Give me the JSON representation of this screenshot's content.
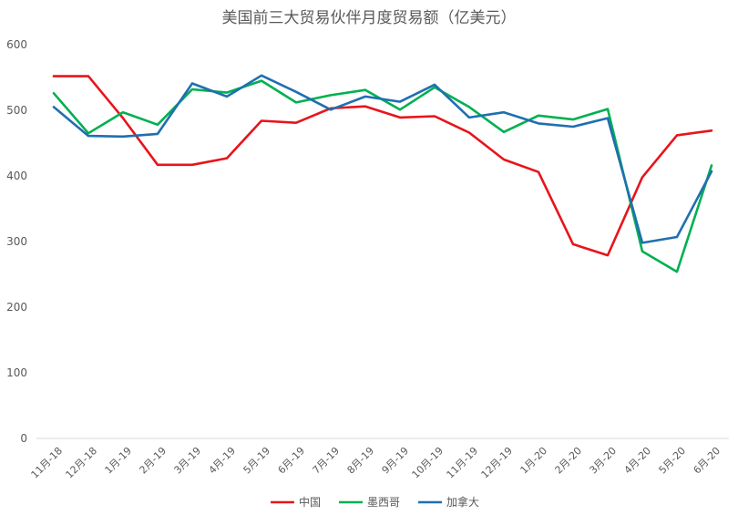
{
  "chart_data": {
    "type": "line",
    "title": "美国前三大贸易伙伴月度贸易额（亿美元）",
    "xlabel": "",
    "ylabel": "",
    "ylim": [
      0,
      600
    ],
    "yticks": [
      "0",
      "100",
      "200",
      "300",
      "400",
      "500",
      "600"
    ],
    "grid": false,
    "legend_position": "bottom",
    "categories": [
      "11月-18",
      "12月-18",
      "1月-19",
      "2月-19",
      "3月-19",
      "4月-19",
      "5月-19",
      "6月-19",
      "7月-19",
      "8月-19",
      "9月-19",
      "10月-19",
      "11月-19",
      "12月-19",
      "1月-20",
      "2月-20",
      "3月-20",
      "4月-20",
      "5月-20",
      "6月-20"
    ],
    "series": [
      {
        "name": "中国",
        "color": "#e8141b",
        "values": [
          552,
          552,
          488,
          417,
          417,
          427,
          484,
          481,
          503,
          506,
          489,
          491,
          466,
          425,
          406,
          296,
          279,
          398,
          462,
          469
        ]
      },
      {
        "name": "墨西哥",
        "color": "#00b050",
        "values": [
          526,
          465,
          497,
          478,
          532,
          527,
          545,
          512,
          523,
          531,
          501,
          535,
          505,
          467,
          492,
          486,
          502,
          285,
          254,
          416
        ]
      },
      {
        "name": "加拿大",
        "color": "#1f6fb0",
        "values": [
          505,
          461,
          460,
          464,
          541,
          521,
          553,
          528,
          501,
          521,
          513,
          539,
          489,
          497,
          480,
          475,
          488,
          298,
          307,
          407
        ]
      }
    ]
  }
}
